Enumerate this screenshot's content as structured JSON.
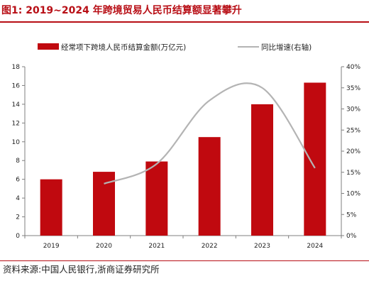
{
  "page": {
    "title": "图1:   2019~2024 年跨境贸易人民币结算额显著攀升",
    "source": "资料来源:中国人民银行,浙商证券研究所"
  },
  "colors": {
    "bar": "#c0090f",
    "line": "#b4b4b4",
    "accent": "#b80f16",
    "axis": "#7f7f7f"
  },
  "chart_data": {
    "type": "bar",
    "categories": [
      "2019",
      "2020",
      "2021",
      "2022",
      "2023",
      "2024"
    ],
    "series": [
      {
        "name": "经常项下跨境人民币结算金额(万亿元)",
        "kind": "bar",
        "axis": "left",
        "values": [
          6.0,
          6.8,
          7.9,
          10.5,
          14.0,
          16.3
        ]
      },
      {
        "name": "同比增速(右轴)",
        "kind": "line",
        "smooth": true,
        "axis": "right",
        "values": [
          null,
          12.3,
          17.0,
          32.0,
          35.0,
          16.0
        ]
      }
    ],
    "ylim": [
      0,
      18
    ],
    "yticks": [
      "0",
      "2",
      "4",
      "6",
      "8",
      "10",
      "12",
      "14",
      "16",
      "18"
    ],
    "y2lim": [
      0,
      40
    ],
    "y2ticks": [
      "0%",
      "5%",
      "10%",
      "15%",
      "20%",
      "25%",
      "30%",
      "35%",
      "40%"
    ],
    "legend_position": "top",
    "grid": false
  }
}
